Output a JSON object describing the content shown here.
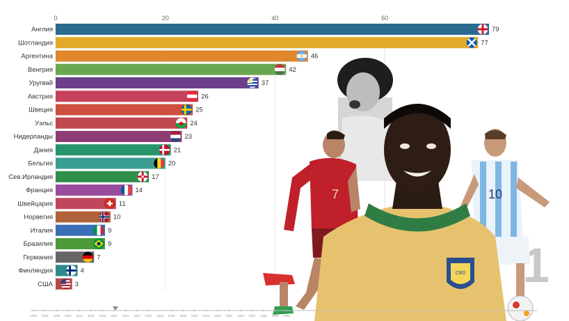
{
  "chart_data": {
    "type": "bar",
    "orientation": "horizontal",
    "title": "",
    "xlabel": "",
    "ylabel": "",
    "xlim": [
      0,
      79
    ],
    "xticks": [
      0,
      20,
      40,
      60
    ],
    "grid": true,
    "categories": [
      "Англия",
      "Шотландия",
      "Аргентина",
      "Венгрия",
      "Уругвай",
      "Австрия",
      "Швеция",
      "Уэльс",
      "Нидерланды",
      "Дания",
      "Бельгия",
      "Сев.Ирландия",
      "Франция",
      "Швейцария",
      "Норвегия",
      "Италия",
      "Бразилия",
      "Германия",
      "Финляндия",
      "США"
    ],
    "values": [
      79,
      77,
      46,
      42,
      37,
      26,
      25,
      24,
      23,
      21,
      20,
      17,
      14,
      11,
      10,
      9,
      9,
      7,
      4,
      3
    ],
    "colors": [
      "#2b6a8f",
      "#e2a92a",
      "#e0862b",
      "#6aa84f",
      "#6b3f8a",
      "#c6415a",
      "#cf4f3f",
      "#c0474d",
      "#8d3c74",
      "#27946b",
      "#3b9e93",
      "#2f8f4a",
      "#9a4d9f",
      "#c0475b",
      "#b0633a",
      "#3a6fb5",
      "#4e9a3a",
      "#666666",
      "#2d8a8a",
      "#b24b4b"
    ],
    "flags": [
      "england-flag",
      "scotland-flag",
      "argentina-flag",
      "hungary-flag",
      "uruguay-flag",
      "austria-flag",
      "sweden-flag",
      "wales-flag",
      "netherlands-flag",
      "denmark-flag",
      "belgium-flag",
      "northern-ireland-flag",
      "france-flag",
      "switzerland-flag",
      "norway-flag",
      "italy-flag",
      "brazil-flag",
      "germany-flag",
      "finland-flag",
      "usa-flag"
    ],
    "timeline": {
      "labels": [
        "1900",
        "1903",
        "1906",
        "1909",
        "1912",
        "1915",
        "1918",
        "1921",
        "1924",
        "1927",
        "1930",
        "1933",
        "1936",
        "1939",
        "1942",
        "1945",
        "1948",
        "1951",
        "1954",
        "1957",
        "1960",
        "1963",
        "1966"
      ]
    }
  },
  "decor": {
    "players": [
      "maradona-photo",
      "ronaldo-photo",
      "pele-photo",
      "messi-photo",
      "soccer-ball"
    ],
    "background_number": "1"
  }
}
